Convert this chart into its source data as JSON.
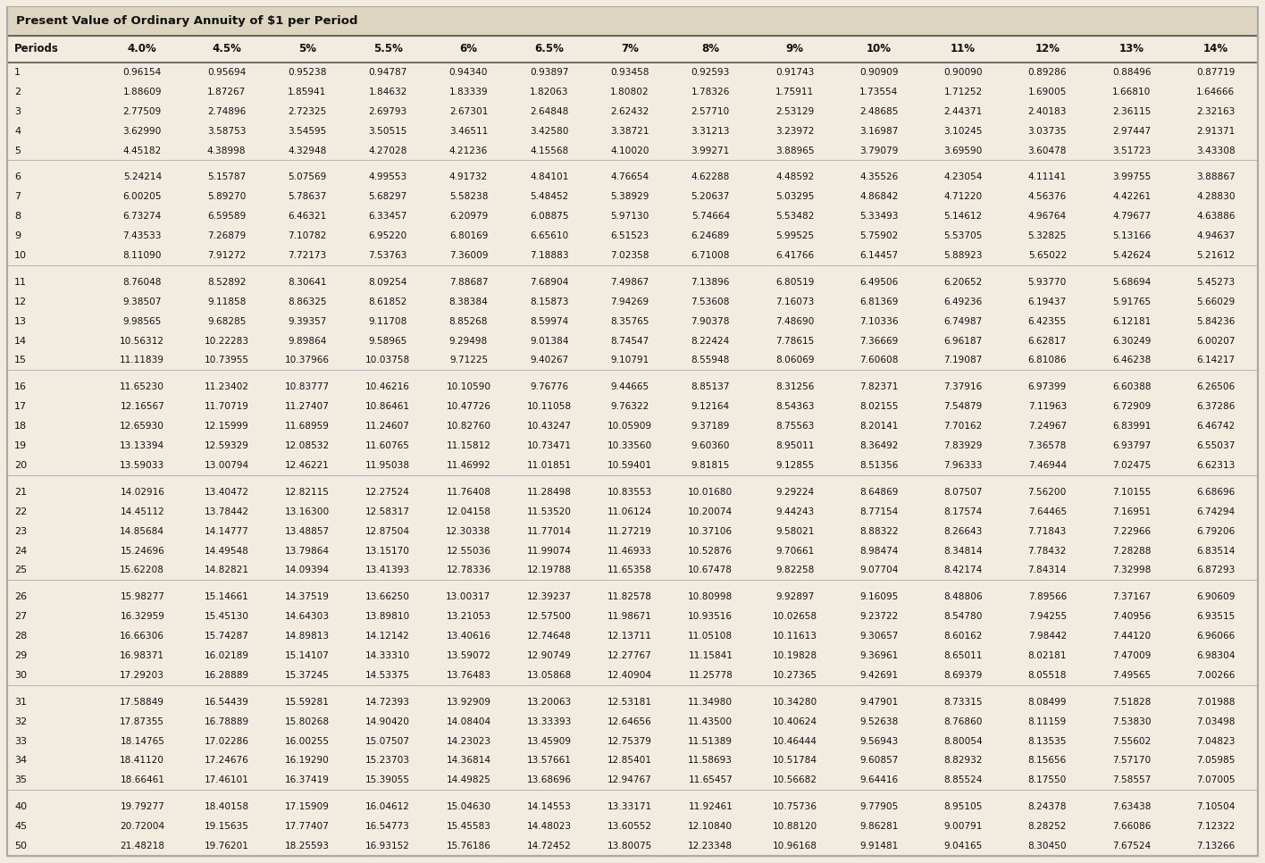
{
  "title": "Present Value of Ordinary Annuity of $1 per Period",
  "headers": [
    "Periods",
    "4.0%",
    "4.5%",
    "5%",
    "5.5%",
    "6%",
    "6.5%",
    "7%",
    "8%",
    "9%",
    "10%",
    "11%",
    "12%",
    "13%",
    "14%"
  ],
  "rows": [
    [
      1,
      0.96154,
      0.95694,
      0.95238,
      0.94787,
      0.9434,
      0.93897,
      0.93458,
      0.92593,
      0.91743,
      0.90909,
      0.9009,
      0.89286,
      0.88496,
      0.87719
    ],
    [
      2,
      1.88609,
      1.87267,
      1.85941,
      1.84632,
      1.83339,
      1.82063,
      1.80802,
      1.78326,
      1.75911,
      1.73554,
      1.71252,
      1.69005,
      1.6681,
      1.64666
    ],
    [
      3,
      2.77509,
      2.74896,
      2.72325,
      2.69793,
      2.67301,
      2.64848,
      2.62432,
      2.5771,
      2.53129,
      2.48685,
      2.44371,
      2.40183,
      2.36115,
      2.32163
    ],
    [
      4,
      3.6299,
      3.58753,
      3.54595,
      3.50515,
      3.46511,
      3.4258,
      3.38721,
      3.31213,
      3.23972,
      3.16987,
      3.10245,
      3.03735,
      2.97447,
      2.91371
    ],
    [
      5,
      4.45182,
      4.38998,
      4.32948,
      4.27028,
      4.21236,
      4.15568,
      4.1002,
      3.99271,
      3.88965,
      3.79079,
      3.6959,
      3.60478,
      3.51723,
      3.43308
    ],
    [
      6,
      5.24214,
      5.15787,
      5.07569,
      4.99553,
      4.91732,
      4.84101,
      4.76654,
      4.62288,
      4.48592,
      4.35526,
      4.23054,
      4.11141,
      3.99755,
      3.88867
    ],
    [
      7,
      6.00205,
      5.8927,
      5.78637,
      5.68297,
      5.58238,
      5.48452,
      5.38929,
      5.20637,
      5.03295,
      4.86842,
      4.7122,
      4.56376,
      4.42261,
      4.2883
    ],
    [
      8,
      6.73274,
      6.59589,
      6.46321,
      6.33457,
      6.20979,
      6.08875,
      5.9713,
      5.74664,
      5.53482,
      5.33493,
      5.14612,
      4.96764,
      4.79677,
      4.63886
    ],
    [
      9,
      7.43533,
      7.26879,
      7.10782,
      6.9522,
      6.80169,
      6.6561,
      6.51523,
      6.24689,
      5.99525,
      5.75902,
      5.53705,
      5.32825,
      5.13166,
      4.94637
    ],
    [
      10,
      8.1109,
      7.91272,
      7.72173,
      7.53763,
      7.36009,
      7.18883,
      7.02358,
      6.71008,
      6.41766,
      6.14457,
      5.88923,
      5.65022,
      5.42624,
      5.21612
    ],
    [
      11,
      8.76048,
      8.52892,
      8.30641,
      8.09254,
      7.88687,
      7.68904,
      7.49867,
      7.13896,
      6.80519,
      6.49506,
      6.20652,
      5.9377,
      5.68694,
      5.45273
    ],
    [
      12,
      9.38507,
      9.11858,
      8.86325,
      8.61852,
      8.38384,
      8.15873,
      7.94269,
      7.53608,
      7.16073,
      6.81369,
      6.49236,
      6.19437,
      5.91765,
      5.66029
    ],
    [
      13,
      9.98565,
      9.68285,
      9.39357,
      9.11708,
      8.85268,
      8.59974,
      8.35765,
      7.90378,
      7.4869,
      7.10336,
      6.74987,
      6.42355,
      6.12181,
      5.84236
    ],
    [
      14,
      10.56312,
      10.22283,
      9.89864,
      9.58965,
      9.29498,
      9.01384,
      8.74547,
      8.22424,
      7.78615,
      7.36669,
      6.96187,
      6.62817,
      6.30249,
      6.00207
    ],
    [
      15,
      11.11839,
      10.73955,
      10.37966,
      10.03758,
      9.71225,
      9.40267,
      9.10791,
      8.55948,
      8.06069,
      7.60608,
      7.19087,
      6.81086,
      6.46238,
      6.14217
    ],
    [
      16,
      11.6523,
      11.23402,
      10.83777,
      10.46216,
      10.1059,
      9.76776,
      9.44665,
      8.85137,
      8.31256,
      7.82371,
      7.37916,
      6.97399,
      6.60388,
      6.26506
    ],
    [
      17,
      12.16567,
      11.70719,
      11.27407,
      10.86461,
      10.47726,
      10.11058,
      9.76322,
      9.12164,
      8.54363,
      8.02155,
      7.54879,
      7.11963,
      6.72909,
      6.37286
    ],
    [
      18,
      12.6593,
      12.15999,
      11.68959,
      11.24607,
      10.8276,
      10.43247,
      10.05909,
      9.37189,
      8.75563,
      8.20141,
      7.70162,
      7.24967,
      6.83991,
      6.46742
    ],
    [
      19,
      13.13394,
      12.59329,
      12.08532,
      11.60765,
      11.15812,
      10.73471,
      10.3356,
      9.6036,
      8.95011,
      8.36492,
      7.83929,
      7.36578,
      6.93797,
      6.55037
    ],
    [
      20,
      13.59033,
      13.00794,
      12.46221,
      11.95038,
      11.46992,
      11.01851,
      10.59401,
      9.81815,
      9.12855,
      8.51356,
      7.96333,
      7.46944,
      7.02475,
      6.62313
    ],
    [
      21,
      14.02916,
      13.40472,
      12.82115,
      12.27524,
      11.76408,
      11.28498,
      10.83553,
      10.0168,
      9.29224,
      8.64869,
      8.07507,
      7.562,
      7.10155,
      6.68696
    ],
    [
      22,
      14.45112,
      13.78442,
      13.163,
      12.58317,
      12.04158,
      11.5352,
      11.06124,
      10.20074,
      9.44243,
      8.77154,
      8.17574,
      7.64465,
      7.16951,
      6.74294
    ],
    [
      23,
      14.85684,
      14.14777,
      13.48857,
      12.87504,
      12.30338,
      11.77014,
      11.27219,
      10.37106,
      9.58021,
      8.88322,
      8.26643,
      7.71843,
      7.22966,
      6.79206
    ],
    [
      24,
      15.24696,
      14.49548,
      13.79864,
      13.1517,
      12.55036,
      11.99074,
      11.46933,
      10.52876,
      9.70661,
      8.98474,
      8.34814,
      7.78432,
      7.28288,
      6.83514
    ],
    [
      25,
      15.62208,
      14.82821,
      14.09394,
      13.41393,
      12.78336,
      12.19788,
      11.65358,
      10.67478,
      9.82258,
      9.07704,
      8.42174,
      7.84314,
      7.32998,
      6.87293
    ],
    [
      26,
      15.98277,
      15.14661,
      14.37519,
      13.6625,
      13.00317,
      12.39237,
      11.82578,
      10.80998,
      9.92897,
      9.16095,
      8.48806,
      7.89566,
      7.37167,
      6.90609
    ],
    [
      27,
      16.32959,
      15.4513,
      14.64303,
      13.8981,
      13.21053,
      12.575,
      11.98671,
      10.93516,
      10.02658,
      9.23722,
      8.5478,
      7.94255,
      7.40956,
      6.93515
    ],
    [
      28,
      16.66306,
      15.74287,
      14.89813,
      14.12142,
      13.40616,
      12.74648,
      12.13711,
      11.05108,
      10.11613,
      9.30657,
      8.60162,
      7.98442,
      7.4412,
      6.96066
    ],
    [
      29,
      16.98371,
      16.02189,
      15.14107,
      14.3331,
      13.59072,
      12.90749,
      12.27767,
      11.15841,
      10.19828,
      9.36961,
      8.65011,
      8.02181,
      7.47009,
      6.98304
    ],
    [
      30,
      17.29203,
      16.28889,
      15.37245,
      14.53375,
      13.76483,
      13.05868,
      12.40904,
      11.25778,
      10.27365,
      9.42691,
      8.69379,
      8.05518,
      7.49565,
      7.00266
    ],
    [
      31,
      17.58849,
      16.54439,
      15.59281,
      14.72393,
      13.92909,
      13.20063,
      12.53181,
      11.3498,
      10.3428,
      9.47901,
      8.73315,
      8.08499,
      7.51828,
      7.01988
    ],
    [
      32,
      17.87355,
      16.78889,
      15.80268,
      14.9042,
      14.08404,
      13.33393,
      12.64656,
      11.435,
      10.40624,
      9.52638,
      8.7686,
      8.11159,
      7.5383,
      7.03498
    ],
    [
      33,
      18.14765,
      17.02286,
      16.00255,
      15.07507,
      14.23023,
      13.45909,
      12.75379,
      11.51389,
      10.46444,
      9.56943,
      8.80054,
      8.13535,
      7.55602,
      7.04823
    ],
    [
      34,
      18.4112,
      17.24676,
      16.1929,
      15.23703,
      14.36814,
      13.57661,
      12.85401,
      11.58693,
      10.51784,
      9.60857,
      8.82932,
      8.15656,
      7.5717,
      7.05985
    ],
    [
      35,
      18.66461,
      17.46101,
      16.37419,
      15.39055,
      14.49825,
      13.68696,
      12.94767,
      11.65457,
      10.56682,
      9.64416,
      8.85524,
      8.1755,
      7.58557,
      7.07005
    ],
    [
      40,
      19.79277,
      18.40158,
      17.15909,
      16.04612,
      15.0463,
      14.14553,
      13.33171,
      11.92461,
      10.75736,
      9.77905,
      8.95105,
      8.24378,
      7.63438,
      7.10504
    ],
    [
      45,
      20.72004,
      19.15635,
      17.77407,
      16.54773,
      15.45583,
      14.48023,
      13.60552,
      12.1084,
      10.8812,
      9.86281,
      9.00791,
      8.28252,
      7.66086,
      7.12322
    ],
    [
      50,
      21.48218,
      19.76201,
      18.25593,
      16.93152,
      15.76186,
      14.72452,
      13.80075,
      12.23348,
      10.96168,
      9.91481,
      9.04165,
      8.3045,
      7.67524,
      7.13266
    ]
  ],
  "bg_color": "#f2ece0",
  "title_bg": "#ddd5c0",
  "outer_border_color": "#aaaaaa",
  "header_line_color": "#555555",
  "sep_line_color": "#aaaaaa",
  "text_color": "#111111",
  "group_separator_rows": [
    5,
    10,
    15,
    20,
    25,
    30,
    35
  ]
}
